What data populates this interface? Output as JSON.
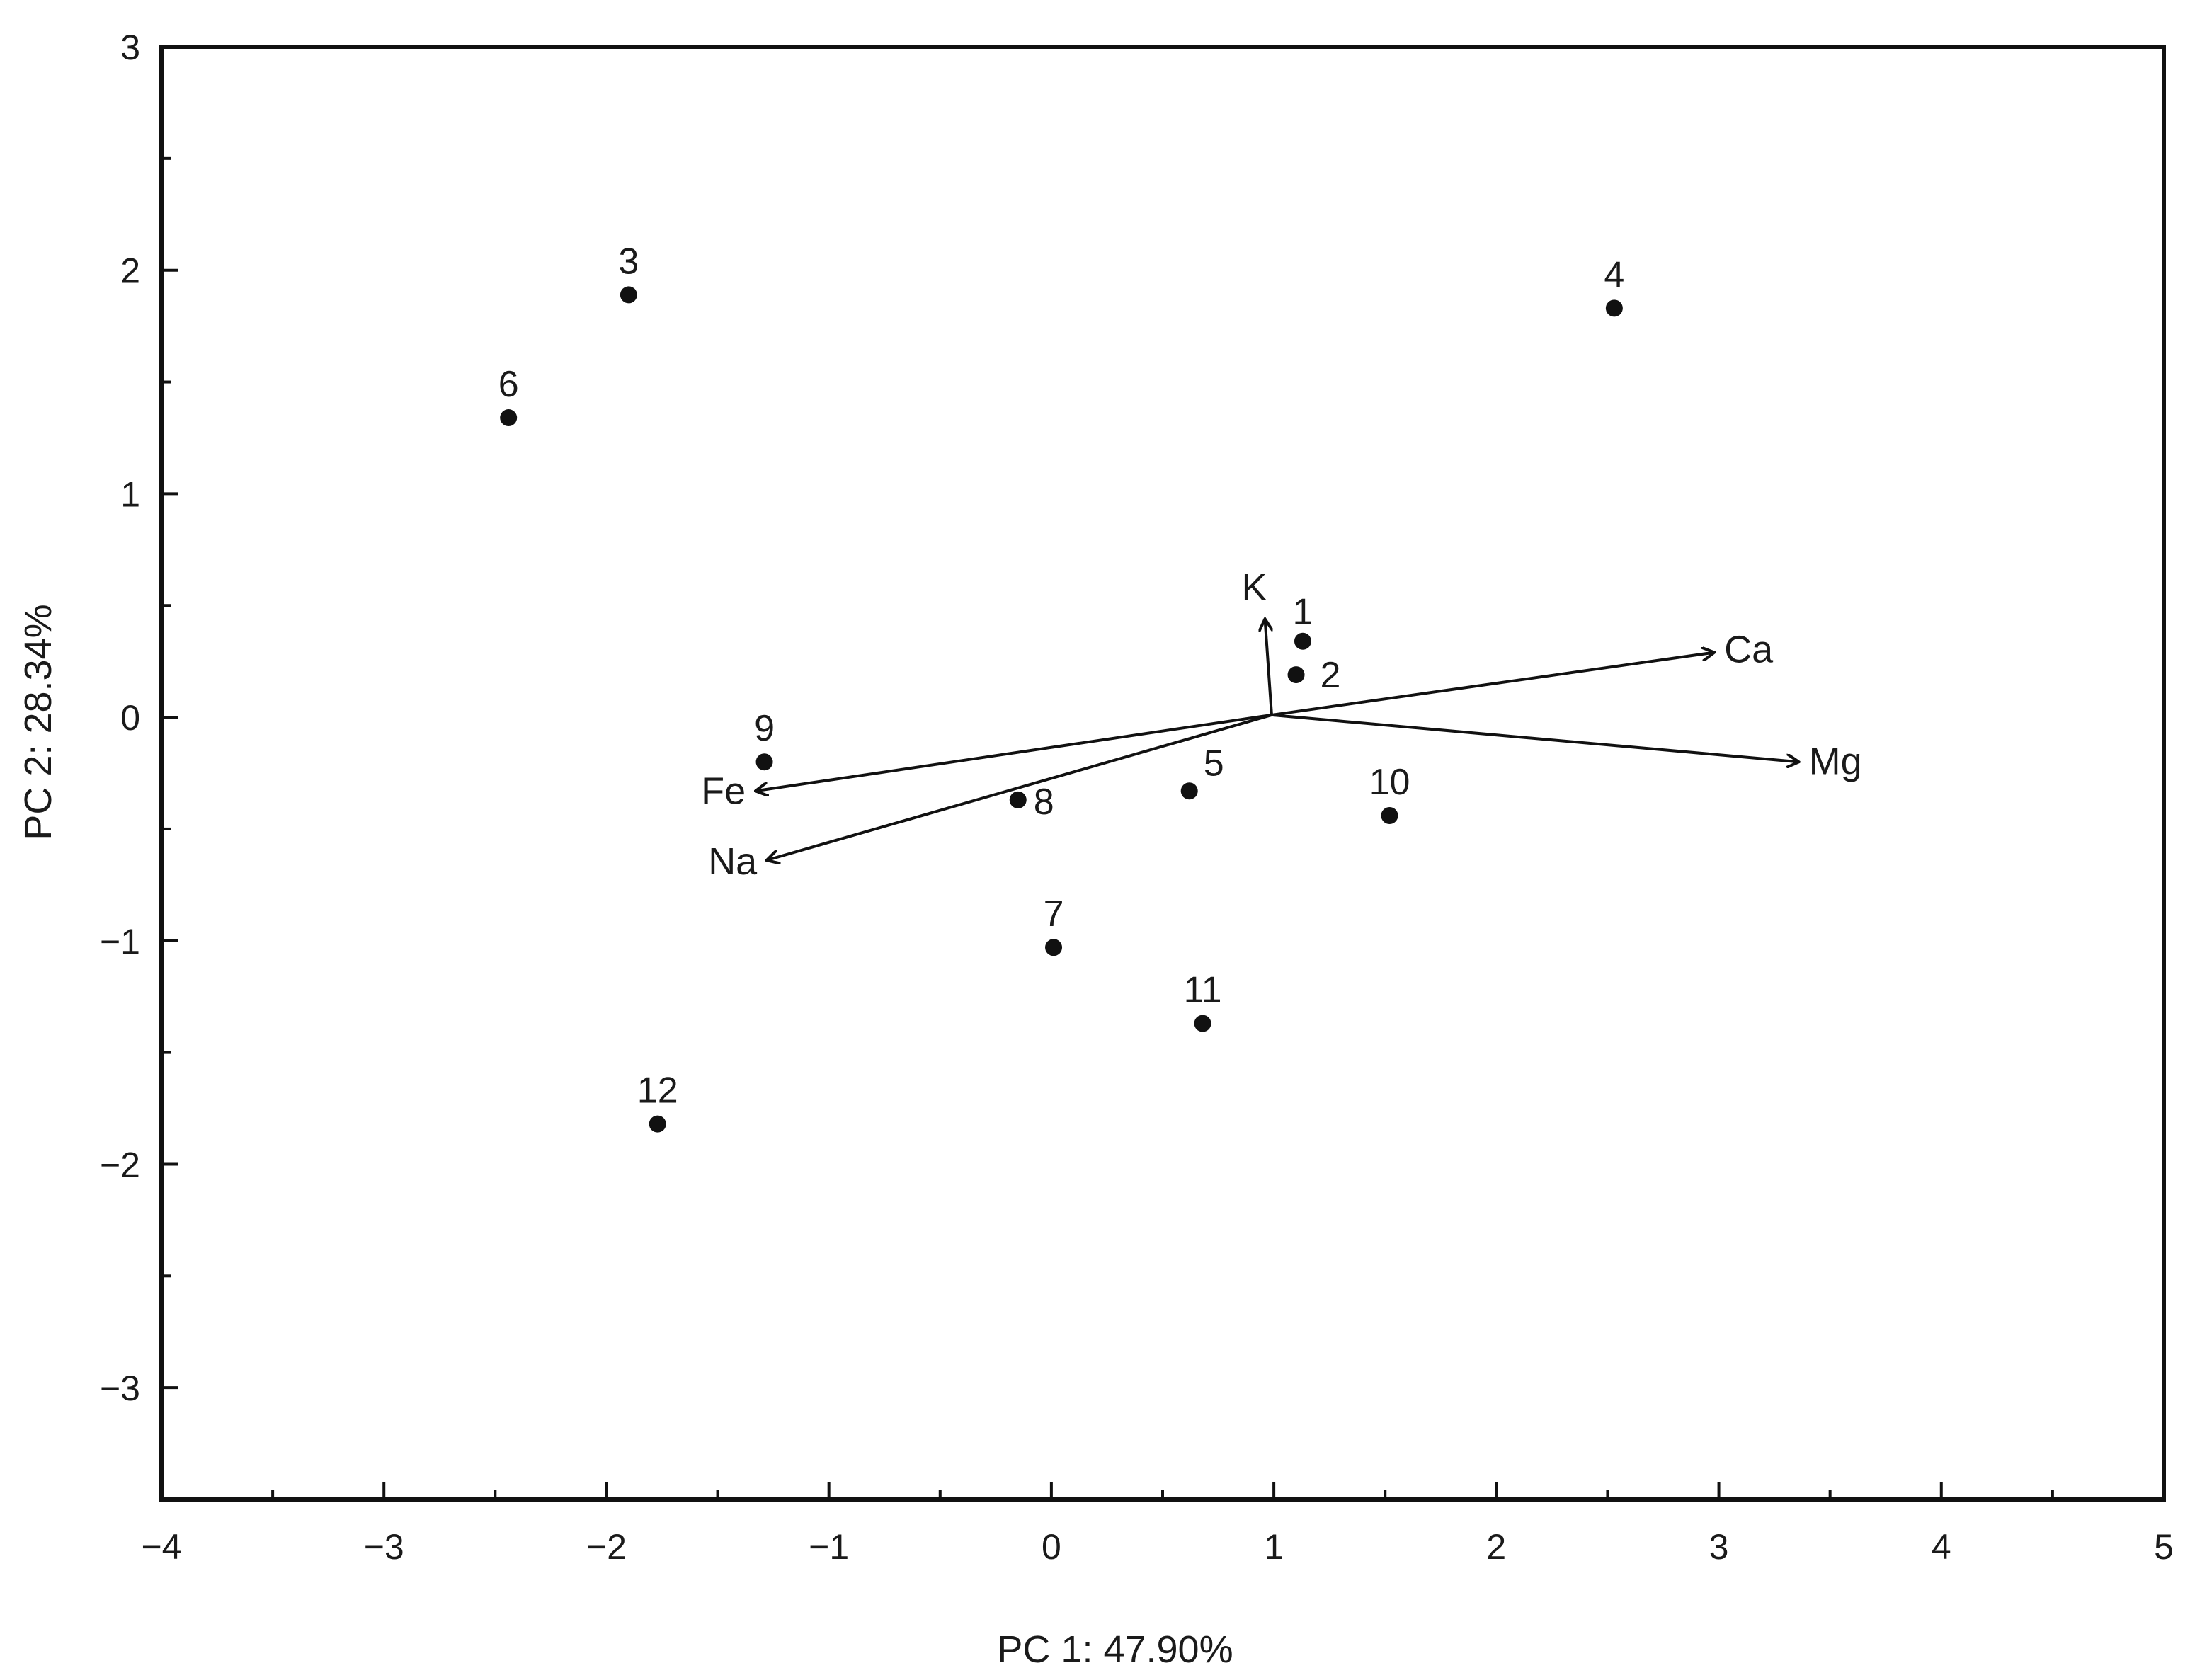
{
  "chart_data": {
    "type": "scatter",
    "title": "",
    "xlabel": "PC 1: 47.90%",
    "ylabel": "PC 2: 28.34%",
    "xlim": [
      -4,
      5
    ],
    "ylim": [
      -3.5,
      3
    ],
    "xticks": [
      "−4",
      "−3",
      "−2",
      "−1",
      "0",
      "1",
      "2",
      "3",
      "4",
      "5"
    ],
    "yticks": [
      "3",
      "2",
      "1",
      "0",
      "−1",
      "−2",
      "−3"
    ],
    "grid": false,
    "points": [
      {
        "label": "1",
        "x": 1.13,
        "y": 0.34
      },
      {
        "label": "2",
        "x": 1.1,
        "y": 0.19
      },
      {
        "label": "3",
        "x": -1.9,
        "y": 1.89
      },
      {
        "label": "4",
        "x": 2.53,
        "y": 1.83
      },
      {
        "label": "5",
        "x": 0.62,
        "y": -0.33
      },
      {
        "label": "6",
        "x": -2.44,
        "y": 1.34
      },
      {
        "label": "7",
        "x": 0.01,
        "y": -1.03
      },
      {
        "label": "8",
        "x": -0.15,
        "y": -0.37
      },
      {
        "label": "9",
        "x": -1.29,
        "y": -0.2
      },
      {
        "label": "10",
        "x": 1.52,
        "y": -0.44
      },
      {
        "label": "11",
        "x": 0.68,
        "y": -1.37
      },
      {
        "label": "12",
        "x": -1.77,
        "y": -1.82
      }
    ],
    "loadings": {
      "origin": [
        0.99,
        0.01
      ],
      "vectors": [
        {
          "label": "K",
          "x": 0.96,
          "y": 0.44
        },
        {
          "label": "Ca",
          "x": 2.98,
          "y": 0.29
        },
        {
          "label": "Mg",
          "x": 3.36,
          "y": -0.2
        },
        {
          "label": "Fe",
          "x": -1.33,
          "y": -0.33
        },
        {
          "label": "Na",
          "x": -1.28,
          "y": -0.64
        }
      ]
    },
    "colors": {
      "points": "#111111",
      "arrows": "#111111",
      "axes": "#111111"
    }
  }
}
